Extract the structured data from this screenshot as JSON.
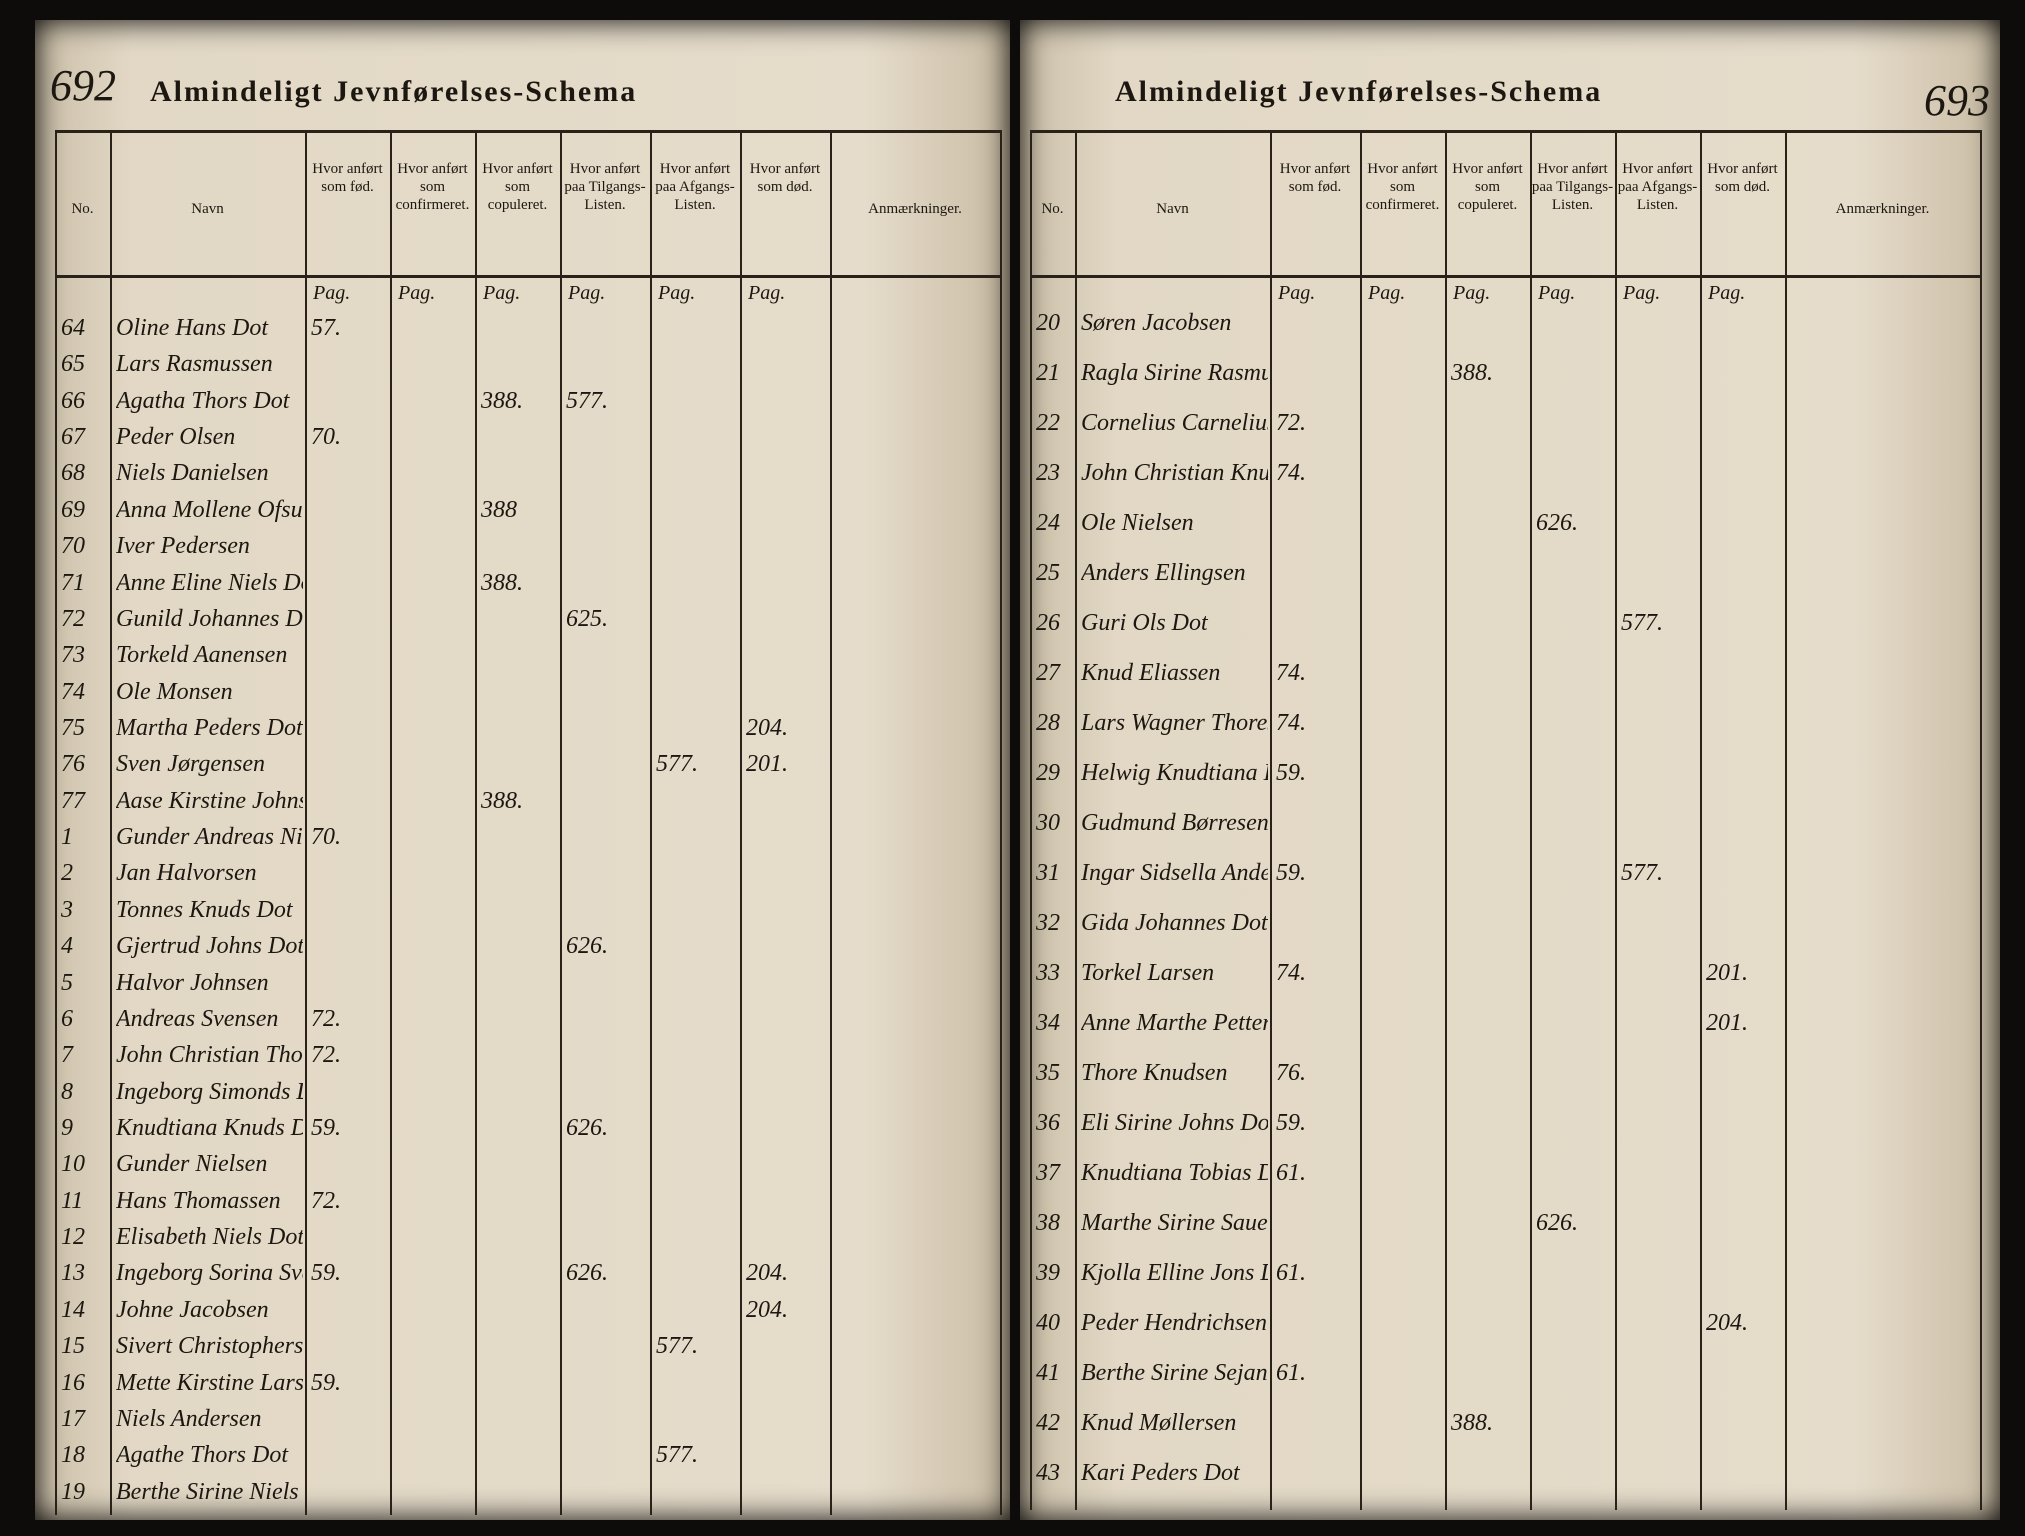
{
  "left_page": {
    "page_number": "692",
    "title": "Almindeligt Jevnførelses-Schema",
    "columns": [
      "No.",
      "Navn",
      "Hvor anført som fød.",
      "Hvor anført som confirmeret.",
      "Hvor anført som copuleret.",
      "Hvor anført paa Tilgangs-Listen.",
      "Hvor anført paa Afgangs-Listen.",
      "Hvor anført som død.",
      "Anmærkninger."
    ],
    "pag": [
      "Pag.",
      "Pag.",
      "Pag.",
      "Pag.",
      "Pag.",
      "Pag."
    ],
    "rows": [
      {
        "no": "64",
        "name": "Oline Hans Dot",
        "born": "57."
      },
      {
        "no": "65",
        "name": "Lars Rasmussen"
      },
      {
        "no": "66",
        "name": "Agatha Thors Dot",
        "married": "388.",
        "added": "577."
      },
      {
        "no": "67",
        "name": "Peder Olsen",
        "born": "70."
      },
      {
        "no": "68",
        "name": "Niels Danielsen"
      },
      {
        "no": "69",
        "name": "Anna Mollene Ofsun Dot",
        "married": "388"
      },
      {
        "no": "70",
        "name": "Iver Pedersen"
      },
      {
        "no": "71",
        "name": "Anne Eline Niels Dot",
        "married": "388."
      },
      {
        "no": "72",
        "name": "Gunild Johannes Dot",
        "added": "625."
      },
      {
        "no": "73",
        "name": "Torkeld Aanensen"
      },
      {
        "no": "74",
        "name": "Ole Monsen"
      },
      {
        "no": "75",
        "name": "Martha Peders Dot",
        "died": "204."
      },
      {
        "no": "76",
        "name": "Sven Jørgensen",
        "removed": "577.",
        "died": "201."
      },
      {
        "no": "77",
        "name": "Aase Kirstine Johns Dot",
        "married": "388."
      },
      {
        "no": "1",
        "name": "Gunder Andreas Nielsen",
        "born": "70."
      },
      {
        "no": "2",
        "name": "Jan Halvorsen"
      },
      {
        "no": "3",
        "name": "Tonnes Knuds Dot"
      },
      {
        "no": "4",
        "name": "Gjertrud Johns Dot",
        "added": "626."
      },
      {
        "no": "5",
        "name": "Halvor Johnsen"
      },
      {
        "no": "6",
        "name": "Andreas Svensen",
        "born": "72."
      },
      {
        "no": "7",
        "name": "John Christian Thorsen",
        "born": "72."
      },
      {
        "no": "8",
        "name": "Ingeborg Simonds Dot"
      },
      {
        "no": "9",
        "name": "Knudtiana Knuds Dot",
        "born": "59.",
        "added": "626."
      },
      {
        "no": "10",
        "name": "Gunder Nielsen"
      },
      {
        "no": "11",
        "name": "Hans Thomassen",
        "born": "72."
      },
      {
        "no": "12",
        "name": "Elisabeth Niels Dot"
      },
      {
        "no": "13",
        "name": "Ingeborg Sorina Svends Dot",
        "born": "59.",
        "added": "626.",
        "died": "204."
      },
      {
        "no": "14",
        "name": "Johne Jacobsen",
        "died": "204."
      },
      {
        "no": "15",
        "name": "Sivert Christophers Dot",
        "removed": "577."
      },
      {
        "no": "16",
        "name": "Mette Kirstine Lars Dot",
        "born": "59."
      },
      {
        "no": "17",
        "name": "Niels Andersen"
      },
      {
        "no": "18",
        "name": "Agathe Thors Dot",
        "removed": "577."
      },
      {
        "no": "19",
        "name": "Berthe Sirine Niels Dot"
      }
    ]
  },
  "right_page": {
    "page_number": "693",
    "title": "Almindeligt Jevnførelses-Schema",
    "columns": [
      "No.",
      "Navn",
      "Hvor anført som fød.",
      "Hvor anført som confirmeret.",
      "Hvor anført som copuleret.",
      "Hvor anført paa Tilgangs-Listen.",
      "Hvor anført paa Afgangs-Listen.",
      "Hvor anført som død.",
      "Anmærkninger."
    ],
    "pag": [
      "Pag.",
      "Pag.",
      "Pag.",
      "Pag.",
      "Pag.",
      "Pag."
    ],
    "rows": [
      {
        "no": "20",
        "name": "Søren Jacobsen"
      },
      {
        "no": "21",
        "name": "Ragla Sirine Rasmus Dot",
        "married": "388."
      },
      {
        "no": "22",
        "name": "Cornelius Carnelius Sen",
        "born": "72."
      },
      {
        "no": "23",
        "name": "John Christian Knudsen",
        "born": "74."
      },
      {
        "no": "24",
        "name": "Ole Nielsen",
        "added": "626."
      },
      {
        "no": "25",
        "name": "Anders Ellingsen"
      },
      {
        "no": "26",
        "name": "Guri Ols Dot",
        "removed": "577."
      },
      {
        "no": "27",
        "name": "Knud Eliassen",
        "born": "74."
      },
      {
        "no": "28",
        "name": "Lars Wagner Thoresen",
        "born": "74."
      },
      {
        "no": "29",
        "name": "Helwig Knudtiana Ericka Dot",
        "born": "59."
      },
      {
        "no": "30",
        "name": "Gudmund Børresen"
      },
      {
        "no": "31",
        "name": "Ingar Sidsella Anders Dot",
        "born": "59.",
        "removed": "577."
      },
      {
        "no": "32",
        "name": "Gida Johannes Dot"
      },
      {
        "no": "33",
        "name": "Torkel Larsen",
        "born": "74.",
        "died": "201."
      },
      {
        "no": "34",
        "name": "Anne Marthe Petter Dot",
        "died": "201."
      },
      {
        "no": "35",
        "name": "Thore Knudsen",
        "born": "76."
      },
      {
        "no": "36",
        "name": "Eli Sirine Johns Dot",
        "born": "59."
      },
      {
        "no": "37",
        "name": "Knudtiana Tobias Dot",
        "born": "61."
      },
      {
        "no": "38",
        "name": "Marthe Sirine Sauels Dot",
        "added": "626."
      },
      {
        "no": "39",
        "name": "Kjolla Elline Jons Dot",
        "born": "61."
      },
      {
        "no": "40",
        "name": "Peder Hendrichsen",
        "died": "204."
      },
      {
        "no": "41",
        "name": "Berthe Sirine Sejans Dot",
        "born": "61."
      },
      {
        "no": "42",
        "name": "Knud Møllersen",
        "married": "388."
      },
      {
        "no": "43",
        "name": "Kari Peders Dot"
      }
    ]
  }
}
